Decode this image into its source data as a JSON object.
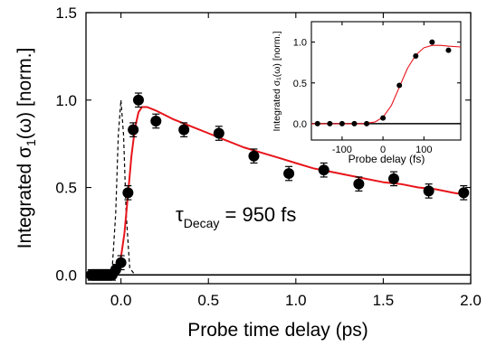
{
  "chart_data": [
    {
      "id": "main",
      "type": "scatter",
      "xlabel": "Probe time delay (ps)",
      "ylabel_text": "Integrated σ",
      "ylabel_sub": "1",
      "ylabel_tail": "(ω) [norm.]",
      "xlim": [
        -0.2,
        2.0
      ],
      "ylim": [
        -0.05,
        1.5
      ],
      "x_ticks": [
        "0.0",
        "0.5",
        "1.0",
        "1.5",
        "2.0"
      ],
      "x_tick_values": [
        0.0,
        0.5,
        1.0,
        1.5,
        2.0
      ],
      "y_ticks": [
        "0.0",
        "0.5",
        "1.0",
        "1.5"
      ],
      "y_tick_values": [
        0.0,
        0.5,
        1.0,
        1.5
      ],
      "annotation": {
        "tau": "τ",
        "sub": "Decay",
        "rest": " = 950 fs"
      },
      "series": [
        {
          "kind": "data-points",
          "color": "#000000",
          "x": [
            -0.17,
            -0.15,
            -0.13,
            -0.11,
            -0.09,
            -0.07,
            -0.05,
            -0.03,
            0.0,
            0.04,
            0.07,
            0.1,
            0.2,
            0.36,
            0.56,
            0.76,
            0.96,
            1.16,
            1.36,
            1.56,
            1.76,
            1.96
          ],
          "y": [
            0.0,
            0.0,
            0.0,
            0.0,
            0.0,
            0.0,
            0.0,
            0.03,
            0.07,
            0.47,
            0.83,
            1.0,
            0.88,
            0.83,
            0.81,
            0.68,
            0.58,
            0.6,
            0.52,
            0.55,
            0.48,
            0.47
          ],
          "err": [
            0.03,
            0.03,
            0.03,
            0.03,
            0.03,
            0.03,
            0.03,
            0.03,
            0.04,
            0.04,
            0.04,
            0.04,
            0.04,
            0.04,
            0.04,
            0.04,
            0.04,
            0.04,
            0.04,
            0.04,
            0.04,
            0.04
          ]
        },
        {
          "kind": "fit",
          "color": "#e8141b",
          "x": [
            -0.2,
            -0.1,
            -0.05,
            -0.02,
            0.0,
            0.02,
            0.04,
            0.06,
            0.08,
            0.1,
            0.12,
            0.15,
            0.2,
            0.3,
            0.4,
            0.5,
            0.6,
            0.7,
            0.8,
            0.9,
            1.0,
            1.1,
            1.2,
            1.3,
            1.4,
            1.5,
            1.6,
            1.7,
            1.8,
            1.9,
            1.96
          ],
          "y": [
            0.0,
            0.0,
            0.01,
            0.04,
            0.1,
            0.24,
            0.46,
            0.68,
            0.84,
            0.93,
            0.96,
            0.96,
            0.94,
            0.89,
            0.85,
            0.81,
            0.77,
            0.73,
            0.7,
            0.67,
            0.64,
            0.61,
            0.59,
            0.57,
            0.55,
            0.53,
            0.52,
            0.5,
            0.49,
            0.47,
            0.46
          ]
        },
        {
          "kind": "pulse",
          "color": "#000000",
          "x": [
            -0.08,
            -0.05,
            -0.03,
            -0.015,
            0.0,
            0.015,
            0.03,
            0.05,
            0.08
          ],
          "y": [
            0.0,
            0.04,
            0.35,
            0.8,
            1.0,
            0.8,
            0.35,
            0.04,
            0.0
          ]
        }
      ]
    },
    {
      "id": "inset",
      "type": "scatter",
      "xlabel": "Probe delay (fs)",
      "ylabel": "Integrated σ₁(ω) [norm.]",
      "xlim": [
        -175,
        190
      ],
      "ylim": [
        -0.2,
        1.25
      ],
      "x_ticks": [
        "-100",
        "0",
        "100"
      ],
      "x_tick_values": [
        -100,
        0,
        100
      ],
      "y_ticks": [
        "0.0",
        "0.5",
        "1.0"
      ],
      "y_tick_values": [
        0.0,
        0.5,
        1.0
      ],
      "series": [
        {
          "kind": "data-points",
          "color": "#000000",
          "x": [
            -160,
            -130,
            -100,
            -70,
            -40,
            0,
            40,
            80,
            120,
            160
          ],
          "y": [
            0.0,
            0.0,
            0.0,
            0.0,
            0.0,
            0.07,
            0.47,
            0.83,
            1.0,
            0.9
          ]
        },
        {
          "kind": "fit",
          "color": "#e8141b",
          "x": [
            -175,
            -100,
            -50,
            -20,
            0,
            20,
            40,
            60,
            80,
            100,
            120,
            140,
            160,
            190
          ],
          "y": [
            0.0,
            0.0,
            0.0,
            0.02,
            0.08,
            0.22,
            0.45,
            0.68,
            0.84,
            0.93,
            0.96,
            0.96,
            0.95,
            0.94
          ]
        }
      ]
    }
  ]
}
